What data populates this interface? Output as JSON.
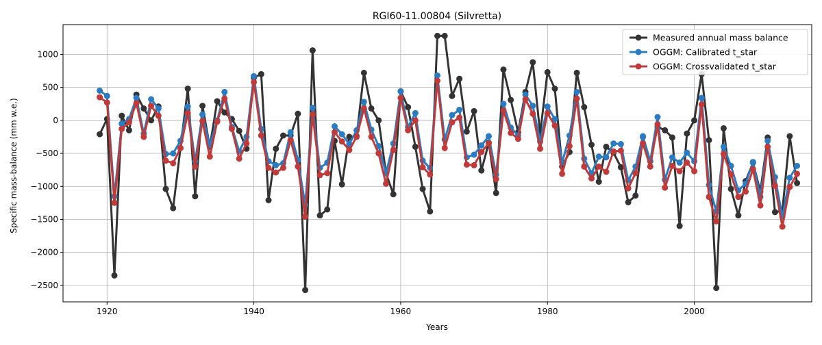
{
  "chart_data": {
    "type": "line",
    "title": "RGI60-11.00804 (Silvretta)",
    "xlabel": "Years",
    "ylabel": "Specific mass-balance (mm w.e.)",
    "xlim": [
      1914,
      2016
    ],
    "ylim": [
      -2750,
      1450
    ],
    "x_ticks": [
      1920,
      1940,
      1960,
      1980,
      2000
    ],
    "y_ticks": [
      -2500,
      -2000,
      -1500,
      -1000,
      -500,
      0,
      500,
      1000
    ],
    "grid": true,
    "legend_position": "top-right",
    "x": [
      1919,
      1920,
      1921,
      1922,
      1923,
      1924,
      1925,
      1926,
      1927,
      1928,
      1929,
      1930,
      1931,
      1932,
      1933,
      1934,
      1935,
      1936,
      1937,
      1938,
      1939,
      1940,
      1941,
      1942,
      1943,
      1944,
      1945,
      1946,
      1947,
      1948,
      1949,
      1950,
      1951,
      1952,
      1953,
      1954,
      1955,
      1956,
      1957,
      1958,
      1959,
      1960,
      1961,
      1962,
      1963,
      1964,
      1965,
      1966,
      1967,
      1968,
      1969,
      1970,
      1971,
      1972,
      1973,
      1974,
      1975,
      1976,
      1977,
      1978,
      1979,
      1980,
      1981,
      1982,
      1983,
      1984,
      1985,
      1986,
      1987,
      1988,
      1989,
      1990,
      1991,
      1992,
      1993,
      1994,
      1995,
      1996,
      1997,
      1998,
      1999,
      2000,
      2001,
      2002,
      2003,
      2004,
      2005,
      2006,
      2007,
      2008,
      2009,
      2010,
      2011,
      2012,
      2013,
      2014
    ],
    "series": [
      {
        "name": "Measured annual mass balance",
        "color": "#333333",
        "values": [
          -210,
          20,
          -2350,
          70,
          -150,
          390,
          180,
          0,
          210,
          -1040,
          -1330,
          -420,
          480,
          -1150,
          220,
          -400,
          290,
          120,
          20,
          -160,
          -430,
          650,
          700,
          -1210,
          -430,
          -230,
          -230,
          100,
          -2570,
          1060,
          -1440,
          -1350,
          -310,
          -970,
          -250,
          -240,
          720,
          180,
          0,
          -800,
          -1120,
          440,
          200,
          -400,
          -1040,
          -1380,
          1280,
          1280,
          370,
          630,
          -170,
          140,
          -760,
          -340,
          -1100,
          770,
          310,
          -180,
          430,
          880,
          -200,
          730,
          480,
          -700,
          -480,
          720,
          200,
          -370,
          -930,
          -400,
          -490,
          -710,
          -1240,
          -1140,
          -250,
          -620,
          -100,
          -150,
          -260,
          -1600,
          -200,
          0,
          700,
          -300,
          -2540,
          -120,
          -1040,
          -1440,
          -920,
          -640,
          -1080,
          -260,
          -1390,
          -1370,
          -240,
          -950
        ]
      },
      {
        "name": "OGGM: Calibrated t_star",
        "color": "#2b7bc2",
        "values": [
          450,
          370,
          -1150,
          -50,
          20,
          340,
          -200,
          320,
          180,
          -510,
          -500,
          -310,
          210,
          -620,
          90,
          -380,
          0,
          430,
          -100,
          -470,
          -250,
          670,
          -130,
          -620,
          -680,
          -650,
          -180,
          -600,
          -1280,
          190,
          -720,
          -640,
          -90,
          -210,
          -360,
          -150,
          280,
          -140,
          -390,
          -800,
          -350,
          440,
          -100,
          110,
          -610,
          -720,
          680,
          -290,
          80,
          160,
          -560,
          -520,
          -380,
          -240,
          -820,
          250,
          -110,
          -230,
          390,
          220,
          -320,
          210,
          20,
          -640,
          -230,
          430,
          -580,
          -800,
          -550,
          -560,
          -350,
          -360,
          -910,
          -700,
          -240,
          -620,
          50,
          -900,
          -560,
          -640,
          -490,
          -620,
          340,
          -980,
          -1380,
          -400,
          -690,
          -1060,
          -960,
          -630,
          -1160,
          -310,
          -860,
          -1460,
          -870,
          -690
        ]
      },
      {
        "name": "OGGM: Crossvalidated t_star",
        "color": "#c03a3a",
        "values": [
          350,
          270,
          -1250,
          -130,
          -30,
          260,
          -250,
          220,
          70,
          -610,
          -650,
          -420,
          110,
          -700,
          -10,
          -550,
          -20,
          330,
          -130,
          -580,
          -350,
          580,
          -230,
          -720,
          -790,
          -720,
          -300,
          -700,
          -1460,
          90,
          -830,
          -800,
          -180,
          -320,
          -450,
          -250,
          180,
          -250,
          -500,
          -960,
          -450,
          340,
          -150,
          0,
          -710,
          -820,
          600,
          -420,
          -30,
          40,
          -670,
          -680,
          -480,
          -350,
          -890,
          150,
          -190,
          -280,
          320,
          100,
          -430,
          110,
          -80,
          -810,
          -390,
          330,
          -700,
          -880,
          -700,
          -780,
          -470,
          -460,
          -1030,
          -800,
          -350,
          -700,
          -60,
          -1020,
          -690,
          -770,
          -640,
          -770,
          240,
          -1160,
          -1530,
          -510,
          -820,
          -1160,
          -1080,
          -740,
          -1290,
          -400,
          -990,
          -1610,
          -1010,
          -810
        ]
      }
    ]
  }
}
